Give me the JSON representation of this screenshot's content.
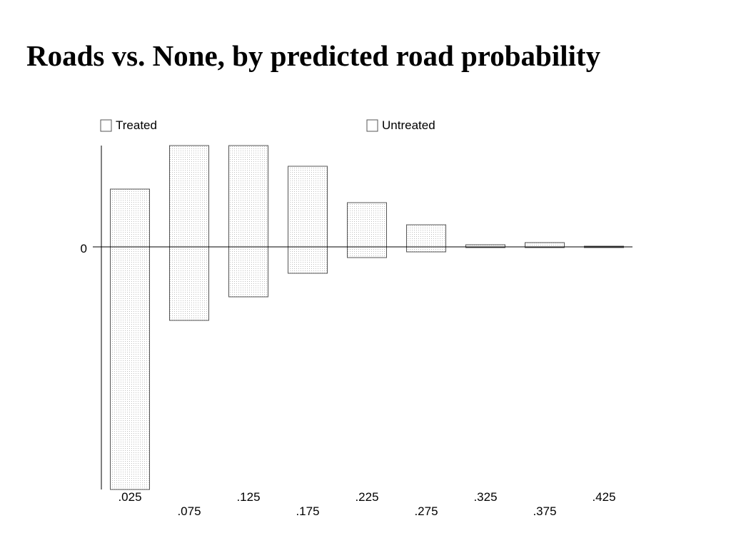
{
  "title": "Roads vs. None, by predicted road probability",
  "chart_data": {
    "type": "bar",
    "title": "Roads vs. None, by predicted road probability",
    "categories": [
      ".025",
      ".075",
      ".125",
      ".175",
      ".225",
      ".275",
      ".325",
      ".375",
      ".425"
    ],
    "series": [
      {
        "name": "Treated",
        "values": [
          81,
          142,
          142,
          113,
          62,
          31,
          3,
          6,
          1
        ]
      },
      {
        "name": "Untreated",
        "values": [
          -340,
          -103,
          -70,
          -37,
          -15,
          -7,
          -1,
          0,
          0
        ]
      }
    ],
    "ytick_labels": [
      "0"
    ],
    "ylim": [
      -340,
      142
    ],
    "legend_position": "top",
    "grid": false,
    "colors": {
      "bar_outline": "#555555",
      "bar_fill_dots": "#bdbdbd",
      "axis": "#000000"
    }
  }
}
